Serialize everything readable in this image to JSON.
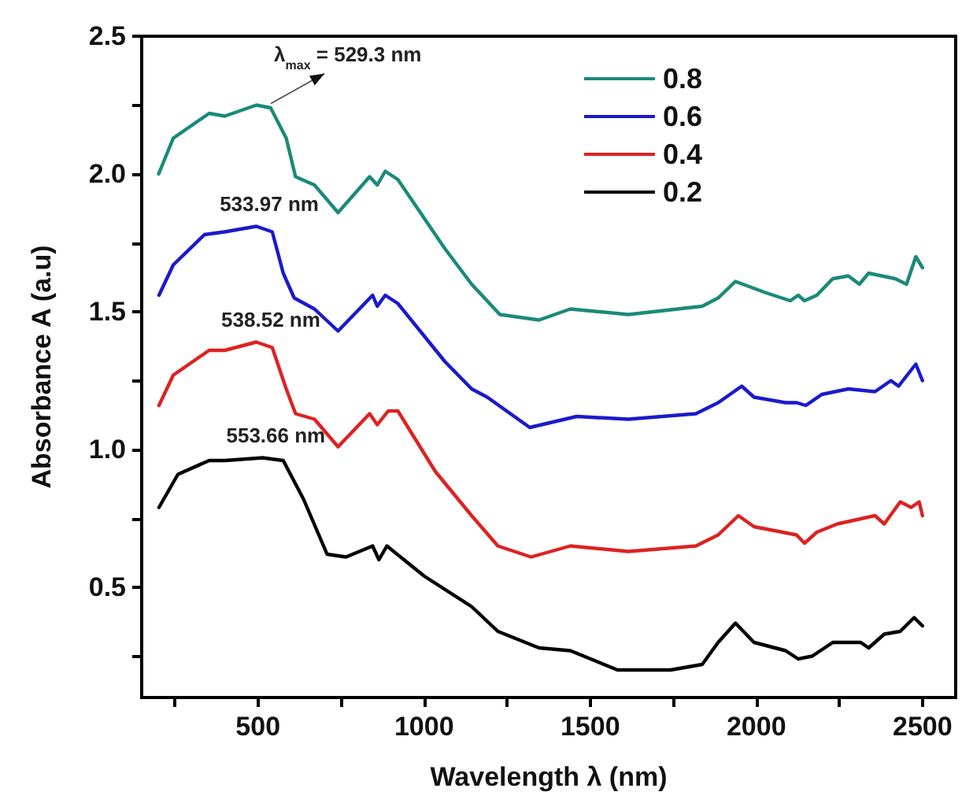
{
  "chart_data": {
    "type": "line",
    "xlabel": "Wavelength λ (nm)",
    "ylabel": "Absorbance A (a.u)",
    "xlim": [
      150,
      2600
    ],
    "ylim": [
      0.1,
      2.5
    ],
    "xticks": [
      {
        "value": 250,
        "label": null
      },
      500,
      {
        "value": 750,
        "label": null
      },
      1000,
      {
        "value": 1250,
        "label": null
      },
      1500,
      {
        "value": 1750,
        "label": null
      },
      2000,
      {
        "value": 2250,
        "label": null
      },
      2500
    ],
    "yticks": [
      {
        "value": 0.25,
        "label": null
      },
      0.5,
      {
        "value": 0.75,
        "label": null
      },
      {
        "value": 1.0,
        "label": "1.0"
      },
      {
        "value": 1.25,
        "label": null
      },
      1.5,
      {
        "value": 1.75,
        "label": null
      },
      {
        "value": 2.0,
        "label": "2.0"
      },
      {
        "value": 2.25,
        "label": null
      },
      2.5
    ],
    "grid": false,
    "legend": "top right",
    "marker": "none",
    "line_style": "solid",
    "annotations": [
      {
        "text": "λ$_{max}$ = 529.3 nm",
        "x": 529.3,
        "y": 2.25
      },
      {
        "text": "533.97 nm",
        "x": 533.97,
        "y": 1.81
      },
      {
        "text": "538.52 nm",
        "x": 538.52,
        "y": 1.39
      },
      {
        "text": "553.66 nm",
        "x": 553.66,
        "y": 0.97
      }
    ],
    "series": [
      {
        "name": "0.8",
        "color": "#1a8a7a",
        "x": [
          201,
          245,
          353,
          400,
          495,
          538,
          585,
          613,
          670,
          741,
          836,
          859,
          883,
          921,
          1062,
          1143,
          1228,
          1346,
          1440,
          1615,
          1837,
          1885,
          1937,
          2026,
          2102,
          2126,
          2145,
          2182,
          2230,
          2277,
          2310,
          2338,
          2418,
          2452,
          2480,
          2500
        ],
        "values": [
          2.0,
          2.13,
          2.22,
          2.21,
          2.25,
          2.24,
          2.13,
          1.99,
          1.96,
          1.86,
          1.99,
          1.96,
          2.01,
          1.98,
          1.73,
          1.6,
          1.49,
          1.47,
          1.51,
          1.49,
          1.52,
          1.55,
          1.61,
          1.57,
          1.54,
          1.56,
          1.54,
          1.56,
          1.62,
          1.63,
          1.6,
          1.64,
          1.62,
          1.6,
          1.7,
          1.66
        ]
      },
      {
        "name": "0.6",
        "color": "#1a1acc",
        "x": [
          202,
          245,
          339,
          400,
          495,
          543,
          576,
          609,
          670,
          741,
          845,
          859,
          883,
          921,
          1062,
          1143,
          1190,
          1318,
          1459,
          1615,
          1818,
          1885,
          1956,
          1993,
          2088,
          2121,
          2149,
          2197,
          2277,
          2357,
          2405,
          2428,
          2480,
          2500
        ],
        "values": [
          1.56,
          1.67,
          1.78,
          1.79,
          1.81,
          1.79,
          1.64,
          1.55,
          1.51,
          1.43,
          1.56,
          1.52,
          1.56,
          1.53,
          1.32,
          1.22,
          1.19,
          1.08,
          1.12,
          1.11,
          1.13,
          1.17,
          1.23,
          1.19,
          1.17,
          1.17,
          1.16,
          1.2,
          1.22,
          1.21,
          1.25,
          1.23,
          1.31,
          1.25
        ]
      },
      {
        "name": "0.4",
        "color": "#dd2222",
        "x": [
          202,
          245,
          353,
          400,
          495,
          543,
          585,
          613,
          670,
          741,
          836,
          859,
          892,
          921,
          1034,
          1143,
          1222,
          1322,
          1440,
          1615,
          1818,
          1885,
          1946,
          1993,
          2121,
          2145,
          2182,
          2244,
          2357,
          2385,
          2433,
          2466,
          2490,
          2500
        ],
        "values": [
          1.16,
          1.27,
          1.36,
          1.36,
          1.39,
          1.37,
          1.22,
          1.13,
          1.11,
          1.01,
          1.13,
          1.09,
          1.14,
          1.14,
          0.92,
          0.76,
          0.65,
          0.61,
          0.65,
          0.63,
          0.65,
          0.69,
          0.76,
          0.72,
          0.69,
          0.66,
          0.7,
          0.73,
          0.76,
          0.73,
          0.81,
          0.79,
          0.81,
          0.76
        ]
      },
      {
        "name": "0.2",
        "color": "#000000",
        "x": [
          202,
          259,
          353,
          400,
          514,
          576,
          637,
          708,
          765,
          845,
          864,
          888,
          1001,
          1143,
          1222,
          1346,
          1440,
          1582,
          1742,
          1837,
          1885,
          1937,
          1993,
          2088,
          2126,
          2168,
          2230,
          2277,
          2314,
          2338,
          2385,
          2433,
          2475,
          2500
        ],
        "values": [
          0.79,
          0.91,
          0.96,
          0.96,
          0.97,
          0.96,
          0.82,
          0.62,
          0.61,
          0.65,
          0.6,
          0.65,
          0.54,
          0.43,
          0.34,
          0.28,
          0.27,
          0.2,
          0.2,
          0.22,
          0.3,
          0.37,
          0.3,
          0.27,
          0.24,
          0.25,
          0.3,
          0.3,
          0.3,
          0.28,
          0.33,
          0.34,
          0.39,
          0.36
        ]
      }
    ]
  }
}
